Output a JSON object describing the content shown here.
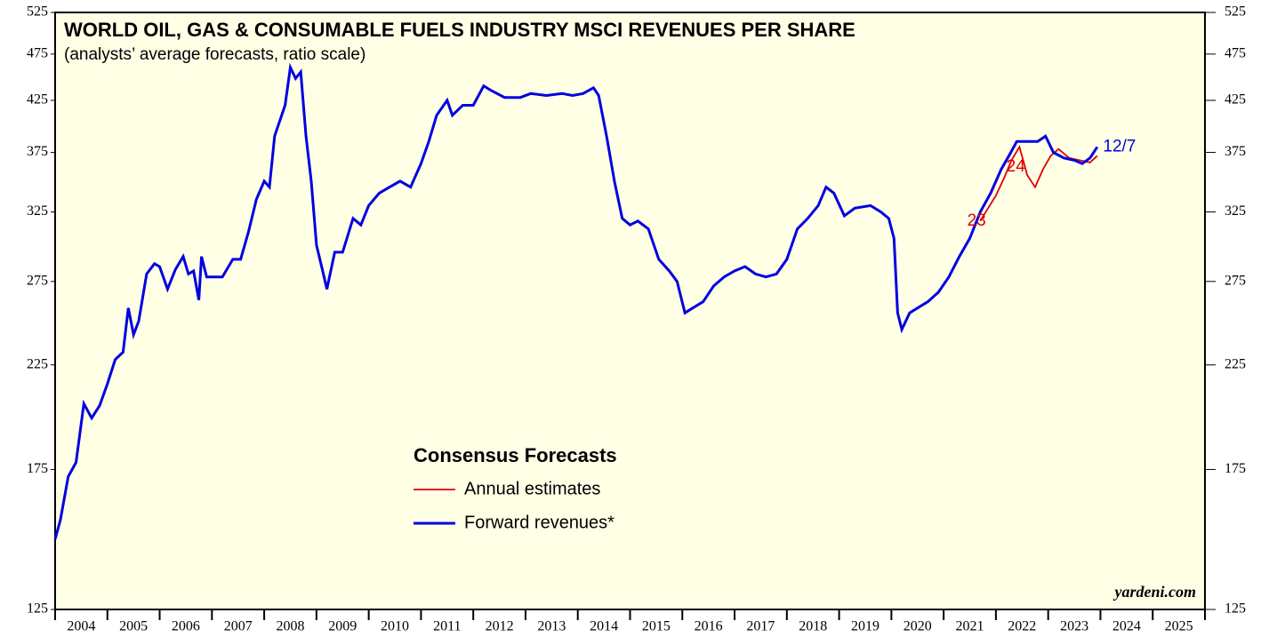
{
  "chart_data": {
    "type": "line",
    "title": "WORLD OIL, GAS & CONSUMABLE FUELS INDUSTRY MSCI REVENUES PER SHARE",
    "subtitle": "(analysts’ average forecasts, ratio scale)",
    "source": "yardeni.com",
    "legend_title": "Consensus Forecasts",
    "legend_position": "lower center",
    "log_scale": true,
    "categories": [
      "2004",
      "2005",
      "2006",
      "2007",
      "2008",
      "2009",
      "2010",
      "2011",
      "2012",
      "2013",
      "2014",
      "2015",
      "2016",
      "2017",
      "2018",
      "2019",
      "2020",
      "2021",
      "2022",
      "2023",
      "2024",
      "2025"
    ],
    "xlim": [
      2004,
      2026
    ],
    "xticks": [
      2004,
      2005,
      2006,
      2007,
      2008,
      2009,
      2010,
      2011,
      2012,
      2013,
      2014,
      2015,
      2016,
      2017,
      2018,
      2019,
      2020,
      2021,
      2022,
      2023,
      2024,
      2025,
      2026
    ],
    "ylim": [
      125,
      525
    ],
    "yticks": [
      125,
      175,
      225,
      275,
      325,
      375,
      425,
      475,
      525
    ],
    "y2lim": [
      125,
      525
    ],
    "y2ticks": [
      125,
      175,
      225,
      275,
      325,
      375,
      425,
      475,
      525
    ],
    "annotations": [
      {
        "text": "23",
        "x": 2021.45,
        "y": 318,
        "color": "#e00000"
      },
      {
        "text": "24",
        "x": 2022.2,
        "y": 362,
        "color": "#e00000"
      },
      {
        "text": "12/7",
        "x": 2024.05,
        "y": 380,
        "color": "#0000e0"
      }
    ],
    "series": [
      {
        "name": "Annual estimates",
        "color": "#e00000",
        "x": [
          2021.7,
          2021.85,
          2022.0,
          2022.15,
          2022.3,
          2022.45,
          2022.6,
          2022.75,
          2022.9,
          2023.05,
          2023.2,
          2023.4,
          2023.6,
          2023.8,
          2023.94
        ],
        "values": [
          318,
          328,
          338,
          352,
          368,
          380,
          355,
          345,
          360,
          372,
          378,
          370,
          368,
          366,
          372
        ]
      },
      {
        "name": "Forward revenues*",
        "color": "#0000e0",
        "x": [
          2004.0,
          2004.1,
          2004.25,
          2004.4,
          2004.55,
          2004.7,
          2004.85,
          2005.0,
          2005.15,
          2005.3,
          2005.4,
          2005.5,
          2005.6,
          2005.75,
          2005.9,
          2006.0,
          2006.15,
          2006.3,
          2006.45,
          2006.55,
          2006.65,
          2006.75,
          2006.8,
          2006.9,
          2007.0,
          2007.2,
          2007.4,
          2007.55,
          2007.7,
          2007.85,
          2008.0,
          2008.1,
          2008.2,
          2008.4,
          2008.5,
          2008.6,
          2008.7,
          2008.8,
          2008.9,
          2009.0,
          2009.1,
          2009.2,
          2009.35,
          2009.5,
          2009.7,
          2009.85,
          2010.0,
          2010.2,
          2010.4,
          2010.6,
          2010.8,
          2011.0,
          2011.15,
          2011.3,
          2011.5,
          2011.6,
          2011.8,
          2012.0,
          2012.2,
          2012.35,
          2012.6,
          2012.9,
          2013.1,
          2013.4,
          2013.7,
          2013.9,
          2014.1,
          2014.3,
          2014.4,
          2014.55,
          2014.7,
          2014.85,
          2015.0,
          2015.15,
          2015.35,
          2015.55,
          2015.75,
          2015.9,
          2016.05,
          2016.2,
          2016.4,
          2016.6,
          2016.8,
          2017.0,
          2017.2,
          2017.4,
          2017.6,
          2017.8,
          2018.0,
          2018.2,
          2018.4,
          2018.6,
          2018.75,
          2018.9,
          2019.1,
          2019.3,
          2019.6,
          2019.8,
          2019.95,
          2020.05,
          2020.12,
          2020.2,
          2020.35,
          2020.5,
          2020.7,
          2020.9,
          2021.1,
          2021.3,
          2021.5,
          2021.7,
          2021.9,
          2022.1,
          2022.25,
          2022.4,
          2022.6,
          2022.8,
          2022.95,
          2023.1,
          2023.3,
          2023.5,
          2023.65,
          2023.8,
          2023.94
        ],
        "values": [
          148,
          155,
          172,
          178,
          205,
          198,
          204,
          215,
          228,
          232,
          258,
          242,
          250,
          280,
          287,
          285,
          270,
          283,
          292,
          280,
          282,
          263,
          292,
          278,
          278,
          278,
          290,
          290,
          310,
          335,
          350,
          345,
          390,
          420,
          460,
          448,
          455,
          390,
          350,
          300,
          285,
          270,
          295,
          295,
          320,
          315,
          330,
          340,
          345,
          350,
          345,
          365,
          385,
          410,
          425,
          410,
          420,
          420,
          440,
          435,
          428,
          428,
          432,
          430,
          432,
          430,
          432,
          438,
          430,
          390,
          350,
          320,
          315,
          318,
          312,
          290,
          282,
          275,
          255,
          258,
          262,
          272,
          278,
          282,
          285,
          280,
          278,
          280,
          290,
          312,
          320,
          330,
          345,
          340,
          322,
          328,
          330,
          325,
          320,
          305,
          255,
          245,
          255,
          258,
          262,
          268,
          278,
          292,
          305,
          325,
          340,
          360,
          372,
          385,
          385,
          385,
          390,
          375,
          370,
          368,
          365,
          370,
          380
        ]
      }
    ]
  }
}
